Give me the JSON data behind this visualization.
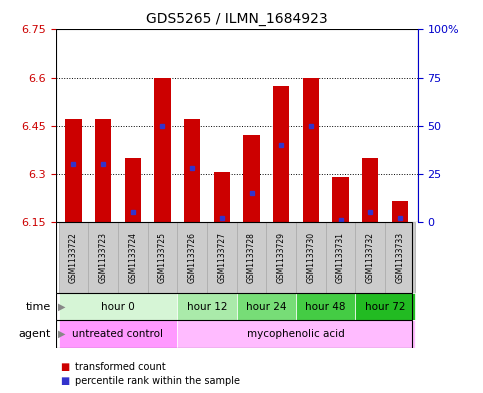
{
  "title": "GDS5265 / ILMN_1684923",
  "samples": [
    "GSM1133722",
    "GSM1133723",
    "GSM1133724",
    "GSM1133725",
    "GSM1133726",
    "GSM1133727",
    "GSM1133728",
    "GSM1133729",
    "GSM1133730",
    "GSM1133731",
    "GSM1133732",
    "GSM1133733"
  ],
  "bar_values": [
    6.47,
    6.47,
    6.35,
    6.6,
    6.47,
    6.305,
    6.42,
    6.575,
    6.6,
    6.29,
    6.35,
    6.215
  ],
  "percentile_values": [
    30,
    30,
    5,
    50,
    28,
    2,
    15,
    40,
    50,
    1,
    5,
    2
  ],
  "bar_bottom": 6.15,
  "ylim": [
    6.15,
    6.75
  ],
  "yticks": [
    6.15,
    6.3,
    6.45,
    6.6,
    6.75
  ],
  "ytick_labels": [
    "6.15",
    "6.3",
    "6.45",
    "6.6",
    "6.75"
  ],
  "right_yticks_val": [
    6.15,
    6.3,
    6.45,
    6.6,
    6.75
  ],
  "right_ytick_labels": [
    "0",
    "25",
    "50",
    "75",
    "100%"
  ],
  "bar_color": "#cc0000",
  "blue_color": "#3333cc",
  "time_groups": [
    {
      "label": "hour 0",
      "start": 0,
      "end": 4
    },
    {
      "label": "hour 12",
      "start": 4,
      "end": 6
    },
    {
      "label": "hour 24",
      "start": 6,
      "end": 8
    },
    {
      "label": "hour 48",
      "start": 8,
      "end": 10
    },
    {
      "label": "hour 72",
      "start": 10,
      "end": 12
    }
  ],
  "time_colors": [
    "#d6f5d6",
    "#aaeaaa",
    "#77dd77",
    "#44cc44",
    "#22bb22"
  ],
  "agent_groups": [
    {
      "label": "untreated control",
      "start": 0,
      "end": 4
    },
    {
      "label": "mycophenolic acid",
      "start": 4,
      "end": 12
    }
  ],
  "agent_colors": [
    "#ff99ff",
    "#ffbbff"
  ],
  "legend_items": [
    {
      "color": "#cc0000",
      "label": "transformed count"
    },
    {
      "color": "#3333cc",
      "label": "percentile rank within the sample"
    }
  ],
  "bar_width": 0.55,
  "background_color": "#ffffff",
  "left_axis_color": "#cc0000",
  "right_axis_color": "#0000cc",
  "sample_box_color": "#cccccc",
  "row_label_color": "#555555",
  "border_color": "#000000"
}
